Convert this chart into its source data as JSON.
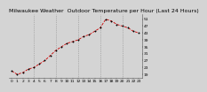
{
  "title": "Milwaukee Weather  Outdoor Temperature per Hour (Last 24 Hours)",
  "hours": [
    0,
    1,
    2,
    3,
    4,
    5,
    6,
    7,
    8,
    9,
    10,
    11,
    12,
    13,
    14,
    15,
    16,
    17,
    18,
    19,
    20,
    21,
    22,
    23
  ],
  "temps": [
    21,
    19,
    20,
    22,
    23,
    25,
    27,
    30,
    33,
    35,
    37,
    38,
    39,
    41,
    42,
    44,
    46,
    51,
    50,
    48,
    47,
    46,
    44,
    43
  ],
  "line_color": "#cc0000",
  "marker_color": "#000000",
  "bg_color": "#d4d4d4",
  "plot_bg": "#d4d4d4",
  "grid_color": "#888888",
  "ylim": [
    17,
    54
  ],
  "ytick_values": [
    51,
    47,
    43,
    39,
    35,
    31,
    27,
    23,
    19
  ],
  "xtick_positions": [
    0,
    1,
    2,
    3,
    4,
    5,
    6,
    7,
    8,
    9,
    10,
    11,
    12,
    13,
    14,
    15,
    16,
    17,
    18,
    19,
    20,
    21,
    22,
    23
  ],
  "vgrid_positions": [
    4,
    8,
    12,
    16,
    20
  ],
  "title_fontsize": 4.5,
  "tick_fontsize": 3.2
}
